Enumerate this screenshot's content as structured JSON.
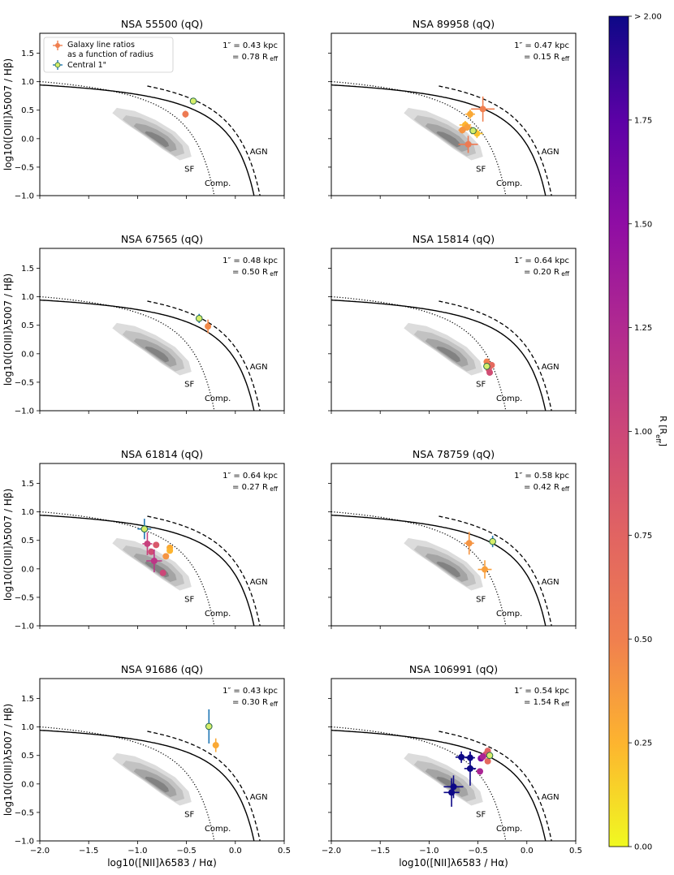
{
  "figure": {
    "xlabel": "log10([NII]λ6583 / Hα)",
    "ylabel": "log10([OIII]λ5007 / Hβ)",
    "region_labels": {
      "sf": "SF",
      "comp": "Comp.",
      "agn": "AGN"
    },
    "legend": {
      "galaxy": "Galaxy line ratios",
      "galaxy2": "as a function of radius",
      "central": "Central 1\""
    },
    "colorbar": {
      "label": "R [R_eff]",
      "ticks": [
        "0.00",
        "0.25",
        "0.50",
        "0.75",
        "1.00",
        "1.25",
        "1.50",
        "1.75",
        "> 2.00"
      ],
      "colors": {
        "c0": "#f0f921",
        "c025": "#fdb42f",
        "c05": "#f07f4f",
        "c075": "#cc4778",
        "c1": "#cc4778",
        "c125": "#9c179e",
        "c175": "#5a01a5",
        "c2": "#0d0887"
      }
    }
  },
  "chart_data": [
    {
      "type": "scatter",
      "title": "NSA 55500 (qQ)",
      "scale_kpc": "1″ = 0.43 kpc",
      "scale_reff": "= 0.78 R",
      "xlim": [
        -2.0,
        0.5
      ],
      "ylim": [
        -1.0,
        1.85
      ],
      "central": {
        "x": -0.43,
        "y": 0.66,
        "ex": 0.0,
        "ey": 0.05
      },
      "points": [
        {
          "x": -0.51,
          "y": 0.43,
          "r": 0.55,
          "ex": 0.0,
          "ey": 0.06
        }
      ]
    },
    {
      "type": "scatter",
      "title": "NSA 89958 (qQ)",
      "scale_kpc": "1″ = 0.47 kpc",
      "scale_reff": "= 0.15 R",
      "xlim": [
        -2.0,
        0.5
      ],
      "ylim": [
        -1.0,
        1.85
      ],
      "central": {
        "x": -0.55,
        "y": 0.14,
        "ex": 0.0,
        "ey": 0.05
      },
      "points": [
        {
          "x": -0.45,
          "y": 0.52,
          "r": 0.5,
          "ex": 0.12,
          "ey": 0.22
        },
        {
          "x": -0.58,
          "y": 0.43,
          "r": 0.3,
          "ex": 0.05,
          "ey": 0.08
        },
        {
          "x": -0.63,
          "y": 0.24,
          "r": 0.25,
          "ex": 0.06,
          "ey": 0.07
        },
        {
          "x": -0.61,
          "y": 0.2,
          "r": 0.35,
          "ex": 0.05,
          "ey": 0.06
        },
        {
          "x": -0.66,
          "y": 0.15,
          "r": 0.4,
          "ex": 0.04,
          "ey": 0.06
        },
        {
          "x": -0.51,
          "y": 0.09,
          "r": 0.2,
          "ex": 0.06,
          "ey": 0.08
        },
        {
          "x": -0.6,
          "y": -0.1,
          "r": 0.55,
          "ex": 0.1,
          "ey": 0.15
        }
      ]
    },
    {
      "type": "scatter",
      "title": "NSA 67565 (qQ)",
      "scale_kpc": "1″ = 0.48 kpc",
      "scale_reff": "= 0.50 R",
      "xlim": [
        -2.0,
        0.5
      ],
      "ylim": [
        -1.0,
        1.85
      ],
      "central": {
        "x": -0.37,
        "y": 0.62,
        "ex": 0.0,
        "ey": 0.08
      },
      "points": [
        {
          "x": -0.28,
          "y": 0.48,
          "r": 0.45,
          "ex": 0.0,
          "ey": 0.12
        }
      ]
    },
    {
      "type": "scatter",
      "title": "NSA 15814 (qQ)",
      "scale_kpc": "1″ = 0.64 kpc",
      "scale_reff": "= 0.20 R",
      "xlim": [
        -2.0,
        0.5
      ],
      "ylim": [
        -1.0,
        1.85
      ],
      "central": {
        "x": -0.41,
        "y": -0.22,
        "ex": 0.0,
        "ey": 0.04
      },
      "points": [
        {
          "x": -0.41,
          "y": -0.14,
          "r": 0.5,
          "ex": 0.0,
          "ey": 0.04
        },
        {
          "x": -0.36,
          "y": -0.2,
          "r": 0.7,
          "ex": 0.0,
          "ey": 0.04
        },
        {
          "x": -0.39,
          "y": -0.27,
          "r": 0.8,
          "ex": 0.0,
          "ey": 0.04
        },
        {
          "x": -0.38,
          "y": -0.33,
          "r": 0.95,
          "ex": 0.0,
          "ey": 0.04
        }
      ]
    },
    {
      "type": "scatter",
      "title": "NSA 61814 (qQ)",
      "scale_kpc": "1″ = 0.64 kpc",
      "scale_reff": "= 0.27 R",
      "xlim": [
        -2.0,
        0.5
      ],
      "ylim": [
        -1.0,
        1.85
      ],
      "central": {
        "x": -0.93,
        "y": 0.7,
        "ex": 0.07,
        "ey": 0.18
      },
      "points": [
        {
          "x": -0.67,
          "y": 0.37,
          "r": 0.3,
          "ex": 0.0,
          "ey": 0.05
        },
        {
          "x": -0.67,
          "y": 0.32,
          "r": 0.25,
          "ex": 0.0,
          "ey": 0.05
        },
        {
          "x": -0.71,
          "y": 0.22,
          "r": 0.4,
          "ex": 0.0,
          "ey": 0.05
        },
        {
          "x": -0.81,
          "y": 0.42,
          "r": 0.85,
          "ex": 0.0,
          "ey": 0.05
        },
        {
          "x": -0.9,
          "y": 0.44,
          "r": 1.05,
          "ex": 0.05,
          "ey": 0.2
        },
        {
          "x": -0.86,
          "y": 0.3,
          "r": 0.95,
          "ex": 0.0,
          "ey": 0.05
        },
        {
          "x": -0.83,
          "y": 0.14,
          "r": 1.15,
          "ex": 0.08,
          "ey": 0.2
        },
        {
          "x": -0.74,
          "y": -0.07,
          "r": 1.0,
          "ex": 0.0,
          "ey": 0.05
        }
      ]
    },
    {
      "type": "scatter",
      "title": "NSA 78759 (qQ)",
      "scale_kpc": "1″ = 0.58 kpc",
      "scale_reff": "= 0.42 R",
      "xlim": [
        -2.0,
        0.5
      ],
      "ylim": [
        -1.0,
        1.85
      ],
      "central": {
        "x": -0.35,
        "y": 0.48,
        "ex": 0.0,
        "ey": 0.1
      },
      "points": [
        {
          "x": -0.59,
          "y": 0.45,
          "r": 0.4,
          "ex": 0.05,
          "ey": 0.2
        },
        {
          "x": -0.43,
          "y": -0.01,
          "r": 0.35,
          "ex": 0.07,
          "ey": 0.16
        }
      ]
    },
    {
      "type": "scatter",
      "title": "NSA 91686 (qQ)",
      "scale_kpc": "1″ = 0.43 kpc",
      "scale_reff": "= 0.30 R",
      "xlim": [
        -2.0,
        0.5
      ],
      "ylim": [
        -1.0,
        1.85
      ],
      "central": {
        "x": -0.27,
        "y": 1.01,
        "ex": 0.0,
        "ey": 0.3
      },
      "points": [
        {
          "x": -0.2,
          "y": 0.68,
          "r": 0.3,
          "ex": 0.0,
          "ey": 0.12
        }
      ]
    },
    {
      "type": "scatter",
      "title": "NSA 106991 (qQ)",
      "scale_kpc": "1″ = 0.54 kpc",
      "scale_reff": "= 1.54 R",
      "xlim": [
        -2.0,
        0.5
      ],
      "ylim": [
        -1.0,
        1.85
      ],
      "central": {
        "x": -0.38,
        "y": 0.5,
        "ex": 0.0,
        "ey": 0.04
      },
      "points": [
        {
          "x": -0.4,
          "y": 0.58,
          "r": 0.75,
          "ex": 0.0,
          "ey": 0.04
        },
        {
          "x": -0.42,
          "y": 0.52,
          "r": 0.85,
          "ex": 0.0,
          "ey": 0.04
        },
        {
          "x": -0.4,
          "y": 0.4,
          "r": 0.7,
          "ex": 0.0,
          "ey": 0.04
        },
        {
          "x": -0.47,
          "y": 0.45,
          "r": 1.6,
          "ex": 0.0,
          "ey": 0.04
        },
        {
          "x": -0.45,
          "y": 0.48,
          "r": 1.3,
          "ex": 0.0,
          "ey": 0.04
        },
        {
          "x": -0.48,
          "y": 0.22,
          "r": 1.3,
          "ex": 0.0,
          "ey": 0.04
        },
        {
          "x": -0.67,
          "y": 0.47,
          "r": 2.0,
          "ex": 0.06,
          "ey": 0.1
        },
        {
          "x": -0.58,
          "y": 0.46,
          "r": 2.0,
          "ex": 0.05,
          "ey": 0.1
        },
        {
          "x": -0.58,
          "y": 0.27,
          "r": 2.0,
          "ex": 0.06,
          "ey": 0.3
        },
        {
          "x": -0.75,
          "y": -0.05,
          "r": 2.0,
          "ex": 0.1,
          "ey": 0.2
        },
        {
          "x": -0.77,
          "y": -0.15,
          "r": 2.0,
          "ex": 0.08,
          "ey": 0.25
        }
      ]
    }
  ]
}
